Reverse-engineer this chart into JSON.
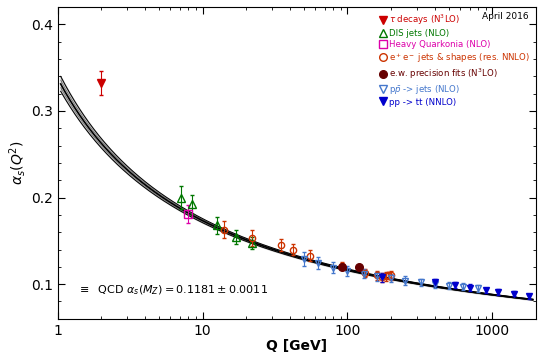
{
  "title_annotation": "April 2016",
  "ylabel": "$\\alpha_s(Q^2)$",
  "xlabel": "Q [GeV]",
  "qcd_label": "$\\equiv$  QCD $\\alpha_s(M_Z) = 0.1181 \\pm 0.0011$",
  "xlim": [
    1,
    2000
  ],
  "ylim": [
    0.06,
    0.42
  ],
  "alpha_s_MZ": 0.1181,
  "alpha_s_MZ_err": 0.0011,
  "tau_decays": {
    "Q": [
      2.0
    ],
    "alpha_s": [
      0.332
    ],
    "err_up": [
      0.014
    ],
    "err_dn": [
      0.014
    ],
    "color": "#cc0000",
    "marker": "v",
    "label_main": "$\\tau$ decays ",
    "label_order": "(N$^3$LO)"
  },
  "DIS_jets": {
    "Q": [
      7.1,
      8.5,
      12.5,
      17.0,
      22.0
    ],
    "alpha_s": [
      0.2,
      0.192,
      0.168,
      0.154,
      0.148
    ],
    "err_up": [
      0.013,
      0.011,
      0.01,
      0.008,
      0.007
    ],
    "err_dn": [
      0.013,
      0.011,
      0.01,
      0.008,
      0.007
    ],
    "color": "#007700",
    "marker": "^",
    "label_main": "DIS jets ",
    "label_order": "(NLO)"
  },
  "heavy_quarkonia": {
    "Q": [
      8.0
    ],
    "alpha_s": [
      0.181
    ],
    "err_up": [
      0.01
    ],
    "err_dn": [
      0.01
    ],
    "color": "#dd00aa",
    "marker": "s",
    "label_main": "Heavy Quarkonia ",
    "label_order": "(NLO)"
  },
  "ee_jets": {
    "Q": [
      14.0,
      22.0,
      34.6,
      42.4,
      55.0,
      91.2,
      133.0,
      161.0,
      172.0,
      183.0,
      189.0,
      200.0
    ],
    "alpha_s": [
      0.163,
      0.153,
      0.145,
      0.14,
      0.133,
      0.121,
      0.113,
      0.11,
      0.108,
      0.109,
      0.11,
      0.11
    ],
    "err_up": [
      0.01,
      0.009,
      0.007,
      0.006,
      0.006,
      0.004,
      0.005,
      0.005,
      0.005,
      0.005,
      0.004,
      0.005
    ],
    "err_dn": [
      0.01,
      0.009,
      0.007,
      0.006,
      0.006,
      0.004,
      0.005,
      0.005,
      0.005,
      0.005,
      0.004,
      0.005
    ],
    "color": "#cc3300",
    "marker": "o",
    "label_main": "e$^+$e$^-$ jets & shapes ",
    "label_order": "(res. NNLO)"
  },
  "ew_precision": {
    "Q": [
      91.2,
      120.0
    ],
    "alpha_s": [
      0.12,
      0.1195
    ],
    "err_up": [
      0.003,
      0.003
    ],
    "err_dn": [
      0.003,
      0.003
    ],
    "color": "#660000",
    "marker": "o",
    "label_main": "e.w. precision fits ",
    "label_order": "(N$^3$LO)"
  },
  "ppbar_jets": {
    "Q": [
      50.0,
      63.0,
      80.0,
      100.0,
      130.0,
      160.0,
      200.0,
      250.0,
      320.0,
      400.0,
      500.0,
      630.0,
      800.0
    ],
    "alpha_s": [
      0.129,
      0.124,
      0.119,
      0.115,
      0.112,
      0.109,
      0.107,
      0.104,
      0.102,
      0.1,
      0.098,
      0.097,
      0.095
    ],
    "err_up": [
      0.008,
      0.007,
      0.006,
      0.006,
      0.005,
      0.005,
      0.005,
      0.005,
      0.004,
      0.004,
      0.004,
      0.004,
      0.004
    ],
    "err_dn": [
      0.008,
      0.007,
      0.006,
      0.006,
      0.005,
      0.005,
      0.005,
      0.005,
      0.004,
      0.004,
      0.004,
      0.004,
      0.004
    ],
    "color": "#4477cc",
    "marker": "v",
    "label_main": "p$\\bar{p}$ -> jets ",
    "label_order": "(NLO)"
  },
  "pp_tt": {
    "Q": [
      172.0,
      400.0,
      550.0,
      700.0,
      900.0,
      1100.0,
      1400.0,
      1800.0
    ],
    "alpha_s": [
      0.108,
      0.102,
      0.099,
      0.096,
      0.093,
      0.091,
      0.089,
      0.086
    ],
    "err_up": [
      0.005,
      0.004,
      0.004,
      0.004,
      0.003,
      0.003,
      0.003,
      0.003
    ],
    "err_dn": [
      0.005,
      0.004,
      0.004,
      0.004,
      0.003,
      0.003,
      0.003,
      0.003
    ],
    "color": "#0000cc",
    "marker": "v",
    "label_main": "pp -> tt ",
    "label_order": "(NNLO)"
  },
  "background_color": "#ffffff"
}
